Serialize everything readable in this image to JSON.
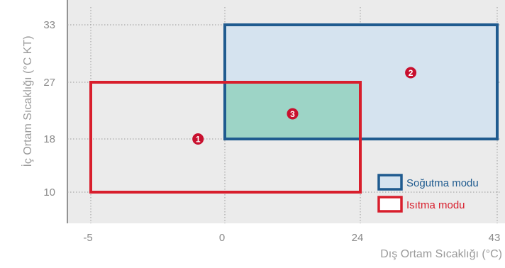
{
  "chart_data": {
    "type": "area",
    "title": "",
    "xlabel": "Dış Ortam Sıcaklığı (°C)",
    "ylabel": "İç Ortam Sıcaklığı (°C KT)",
    "x_ticks": [
      {
        "value": -5,
        "label": "-5"
      },
      {
        "value": 0,
        "label": "0"
      },
      {
        "value": 24,
        "label": "24"
      },
      {
        "value": 43,
        "label": "43"
      }
    ],
    "y_ticks": [
      {
        "value": 10,
        "label": "10"
      },
      {
        "value": 18,
        "label": "18"
      },
      {
        "value": 27,
        "label": "27"
      },
      {
        "value": 33,
        "label": "33"
      }
    ],
    "series": [
      {
        "name": "Soğutma modu",
        "x_range": [
          0,
          43
        ],
        "y_range": [
          18,
          33
        ],
        "color": "#1f5b8f",
        "fill": "#d5e3ef"
      },
      {
        "name": "Isıtma modu",
        "x_range": [
          -5,
          24
        ],
        "y_range": [
          10,
          27
        ],
        "color": "#d81e2c",
        "fill": "none"
      }
    ],
    "overlap": {
      "x_range": [
        0,
        24
      ],
      "y_range": [
        18,
        27
      ],
      "fill": "#9dd4c6"
    },
    "annotations": [
      {
        "label": "1",
        "x": -1,
        "y": 18
      },
      {
        "label": "2",
        "x": 31,
        "y": 28
      },
      {
        "label": "3",
        "x": 12,
        "y": 22
      }
    ],
    "legend_position": "bottom-right",
    "grid": "dotted guide lines at tick values",
    "background": "#ebebeb",
    "badge_color": "#c8102e"
  }
}
